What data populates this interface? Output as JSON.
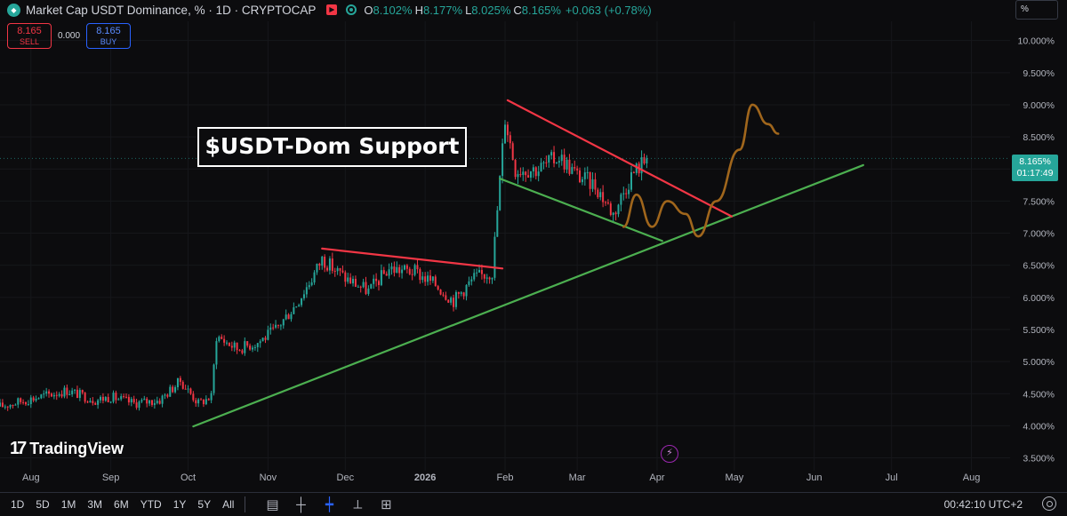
{
  "header": {
    "symbol_title": "Market Cap USDT Dominance, % · 1D · CRYPTOCAP",
    "open_label": "O",
    "open": "8.102%",
    "high_label": "H",
    "high": "8.177%",
    "low_label": "L",
    "low": "8.025%",
    "close_label": "C",
    "close": "8.165%",
    "change": "+0.063 (+0.78%)"
  },
  "trade": {
    "sell_price": "8.165",
    "sell_label": "SELL",
    "spread": "0.000",
    "buy_price": "8.165",
    "buy_label": "BUY"
  },
  "unit_label": "%",
  "annotation": "$USDT-Dom Support",
  "price_tag": {
    "value": "8.165%",
    "countdown": "01:17:49"
  },
  "brand": "TradingView",
  "toolbar": {
    "timeframes": [
      "1D",
      "5D",
      "1M",
      "3M",
      "6M",
      "YTD",
      "1Y",
      "5Y",
      "All"
    ],
    "clock": "00:42:10 UTC+2"
  },
  "colors": {
    "up": "#26a69a",
    "down": "#f23645",
    "resistance": "#f23645",
    "support": "#4caf50",
    "projection": "#a0661c"
  },
  "chart_data": {
    "type": "candlestick",
    "title": "Market Cap USDT Dominance, % · 1D · CRYPTOCAP",
    "y_scale": "linear",
    "ylim": [
      3.3,
      10.3
    ],
    "y_ticks": [
      "10.000%",
      "9.500%",
      "9.000%",
      "8.500%",
      "8.000%",
      "7.500%",
      "7.000%",
      "6.500%",
      "6.000%",
      "5.500%",
      "5.000%",
      "4.500%",
      "4.000%",
      "3.500%"
    ],
    "y_tick_values": [
      10.0,
      9.5,
      9.0,
      8.5,
      8.0,
      7.5,
      7.0,
      6.5,
      6.0,
      5.5,
      5.0,
      4.5,
      4.0,
      3.5
    ],
    "x_ticks": [
      "Aug",
      "Sep",
      "Oct",
      "Nov",
      "Dec",
      "2026",
      "Feb",
      "Mar",
      "Apr",
      "May",
      "Jun",
      "Jul",
      "Aug"
    ],
    "x_tick_dates": [
      "2025-08-01",
      "2025-09-01",
      "2025-10-01",
      "2025-11-01",
      "2025-12-01",
      "2026-01-01",
      "2026-02-01",
      "2026-03-01",
      "2026-04-01",
      "2026-05-01",
      "2026-06-01",
      "2026-07-01",
      "2026-08-01"
    ],
    "x_range": [
      "2025-07-20",
      "2026-08-16"
    ],
    "price_anchors": [
      [
        "2025-07-20",
        4.3
      ],
      [
        "2025-08-01",
        4.42
      ],
      [
        "2025-08-15",
        4.55
      ],
      [
        "2025-08-26",
        4.4
      ],
      [
        "2025-09-01",
        4.45
      ],
      [
        "2025-09-10",
        4.35
      ],
      [
        "2025-09-20",
        4.4
      ],
      [
        "2025-09-28",
        4.7
      ],
      [
        "2025-10-05",
        4.35
      ],
      [
        "2025-10-10",
        4.45
      ],
      [
        "2025-10-12",
        5.4
      ],
      [
        "2025-10-20",
        5.2
      ],
      [
        "2025-10-28",
        5.3
      ],
      [
        "2025-11-04",
        5.5
      ],
      [
        "2025-11-12",
        5.9
      ],
      [
        "2025-11-18",
        6.3
      ],
      [
        "2025-11-22",
        6.6
      ],
      [
        "2025-12-01",
        6.3
      ],
      [
        "2025-12-10",
        6.1
      ],
      [
        "2025-12-18",
        6.45
      ],
      [
        "2025-12-28",
        6.4
      ],
      [
        "2026-01-05",
        6.2
      ],
      [
        "2026-01-12",
        5.95
      ],
      [
        "2026-01-20",
        6.3
      ],
      [
        "2026-01-27",
        6.4
      ],
      [
        "2026-02-01",
        8.8
      ],
      [
        "2026-02-05",
        8.0
      ],
      [
        "2026-02-14",
        8.0
      ],
      [
        "2026-02-22",
        8.2
      ],
      [
        "2026-03-01",
        7.9
      ],
      [
        "2026-03-08",
        7.75
      ],
      [
        "2026-03-15",
        7.3
      ],
      [
        "2026-03-22",
        7.9
      ],
      [
        "2026-03-28",
        8.17
      ]
    ],
    "last_close": 8.165,
    "trendlines": [
      {
        "name": "support",
        "color": "#4caf50",
        "from": [
          "2025-10-03",
          3.99
        ],
        "to": [
          "2026-06-20",
          8.06
        ]
      },
      {
        "name": "channel-low",
        "color": "#4caf50",
        "from": [
          "2026-01-30",
          7.85
        ],
        "to": [
          "2026-04-03",
          6.88
        ]
      },
      {
        "name": "resistance-1",
        "color": "#f23645",
        "from": [
          "2025-11-22",
          6.76
        ],
        "to": [
          "2026-01-31",
          6.45
        ]
      },
      {
        "name": "resistance-2",
        "color": "#f23645",
        "from": [
          "2026-02-02",
          9.07
        ],
        "to": [
          "2026-04-30",
          7.26
        ]
      }
    ],
    "projection_path": [
      [
        "2026-03-19",
        7.1
      ],
      [
        "2026-03-24",
        7.6
      ],
      [
        "2026-03-30",
        7.1
      ],
      [
        "2026-04-05",
        7.5
      ],
      [
        "2026-04-12",
        7.3
      ],
      [
        "2026-04-17",
        6.95
      ],
      [
        "2026-04-24",
        7.5
      ],
      [
        "2026-05-03",
        8.3
      ],
      [
        "2026-05-08",
        9.0
      ],
      [
        "2026-05-14",
        8.7
      ],
      [
        "2026-05-18",
        8.55
      ]
    ]
  }
}
